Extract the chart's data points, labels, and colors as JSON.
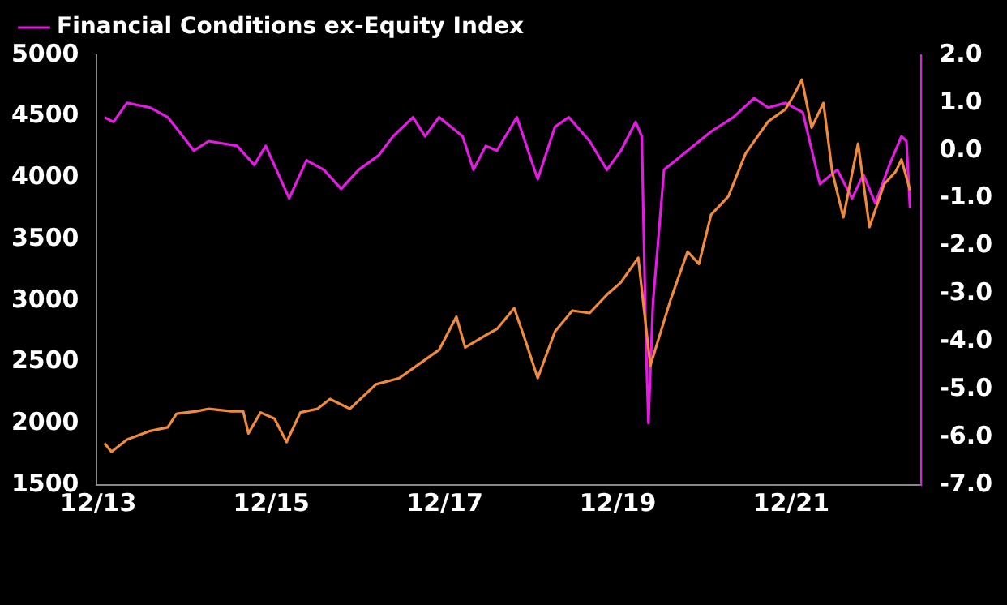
{
  "chart_data": {
    "type": "line",
    "legend": "top left",
    "grid": false,
    "marker": "none",
    "xlim": [
      "2013-11-25",
      "2023-06-03"
    ],
    "xticks": [
      {
        "value": "2013-12-01",
        "label": "12/13"
      },
      {
        "value": "2015-12-01",
        "label": "12/15"
      },
      {
        "value": "2017-12-01",
        "label": "12/17"
      },
      {
        "value": "2019-12-01",
        "label": "12/19"
      },
      {
        "value": "2021-12-01",
        "label": "12/21"
      }
    ],
    "ylim": [
      1500,
      5000
    ],
    "yticks": [
      1500,
      2000,
      2500,
      3000,
      3500,
      4000,
      4500,
      5000
    ],
    "y2lim": [
      -7,
      2
    ],
    "y2ticks": [
      {
        "value": -7,
        "label": "-7.0"
      },
      {
        "value": -6,
        "label": "-6.0"
      },
      {
        "value": -5,
        "label": "-5.0"
      },
      {
        "value": -4,
        "label": "-4.0"
      },
      {
        "value": -3,
        "label": "-3.0"
      },
      {
        "value": -2,
        "label": "-2.0"
      },
      {
        "value": -1,
        "label": "-1.0"
      },
      {
        "value": 0,
        "label": "0.0"
      },
      {
        "value": 1,
        "label": "1.0"
      },
      {
        "value": 2,
        "label": "2.0"
      }
    ],
    "series": [
      {
        "color": "#f08a3c",
        "axis": "y",
        "x": [
          "2013-12-27",
          "2014-01-26",
          "2014-04-01",
          "2014-07-08",
          "2014-09-20",
          "2014-10-27",
          "2015-01-19",
          "2015-03-11",
          "2015-06-14",
          "2015-08-04",
          "2015-08-26",
          "2015-10-16",
          "2015-12-14",
          "2016-02-03",
          "2016-04-01",
          "2016-06-13",
          "2016-08-04",
          "2016-10-27",
          "2017-02-14",
          "2017-05-23",
          "2017-08-04",
          "2017-11-07",
          "2018-01-19",
          "2018-02-25",
          "2018-05-23",
          "2018-07-09",
          "2018-09-20",
          "2018-11-07",
          "2018-12-28",
          "2019-03-11",
          "2019-05-23",
          "2019-08-04",
          "2019-10-16",
          "2019-12-14",
          "2020-02-25",
          "2020-04-16",
          "2020-07-09",
          "2020-09-20",
          "2020-11-07",
          "2020-12-28",
          "2021-03-11",
          "2021-05-23",
          "2021-08-26",
          "2021-11-07",
          "2021-12-14",
          "2022-01-15",
          "2022-02-25",
          "2022-04-16",
          "2022-05-23",
          "2022-07-09",
          "2022-09-09",
          "2022-10-27",
          "2022-12-28",
          "2023-02-14",
          "2023-03-11",
          "2023-04-16"
        ],
        "values": [
          1840,
          1770,
          1870,
          1940,
          1970,
          2080,
          2100,
          2120,
          2100,
          2100,
          1920,
          2090,
          2040,
          1850,
          2090,
          2120,
          2200,
          2120,
          2320,
          2370,
          2470,
          2600,
          2870,
          2620,
          2720,
          2770,
          2940,
          2670,
          2370,
          2750,
          2920,
          2900,
          3050,
          3150,
          3350,
          2470,
          3000,
          3400,
          3300,
          3700,
          3850,
          4200,
          4460,
          4560,
          4680,
          4800,
          4410,
          4610,
          4050,
          3680,
          4280,
          3600,
          3950,
          4050,
          4150,
          3900
        ]
      },
      {
        "name": "Financial Conditions ex-Equity Index",
        "color": "#e619e6",
        "axis": "y2",
        "x": [
          "2013-12-27",
          "2014-02-03",
          "2014-04-01",
          "2014-07-09",
          "2014-09-20",
          "2014-11-07",
          "2015-01-08",
          "2015-03-11",
          "2015-07-09",
          "2015-09-20",
          "2015-11-07",
          "2016-02-14",
          "2016-04-27",
          "2016-07-09",
          "2016-09-20",
          "2016-12-03",
          "2017-02-25",
          "2017-04-27",
          "2017-07-20",
          "2017-09-09",
          "2017-11-07",
          "2018-02-14",
          "2018-04-01",
          "2018-05-23",
          "2018-07-09",
          "2018-10-01",
          "2018-12-28",
          "2019-03-11",
          "2019-05-08",
          "2019-08-04",
          "2019-10-16",
          "2019-12-14",
          "2020-02-14",
          "2020-03-11",
          "2020-03-29",
          "2020-04-08",
          "2020-04-27",
          "2020-06-13",
          "2020-09-20",
          "2020-12-28",
          "2021-04-01",
          "2021-06-28",
          "2021-08-26",
          "2021-11-07",
          "2022-01-19",
          "2022-04-01",
          "2022-06-13",
          "2022-08-15",
          "2022-10-01",
          "2022-11-21",
          "2023-01-19",
          "2023-03-11",
          "2023-04-01",
          "2023-04-16"
        ],
        "values": [
          0.7,
          0.6,
          1.0,
          0.9,
          0.7,
          0.4,
          0.0,
          0.2,
          0.1,
          -0.3,
          0.1,
          -1.0,
          -0.2,
          -0.4,
          -0.8,
          -0.4,
          -0.1,
          0.3,
          0.7,
          0.3,
          0.7,
          0.3,
          -0.4,
          0.1,
          0.0,
          0.7,
          -0.6,
          0.5,
          0.7,
          0.2,
          -0.4,
          0.0,
          0.6,
          0.3,
          -4.1,
          -5.7,
          -3.2,
          -0.4,
          0.0,
          0.4,
          0.7,
          1.1,
          0.9,
          1.0,
          0.8,
          -0.7,
          -0.4,
          -1.0,
          -0.5,
          -1.1,
          -0.3,
          0.3,
          0.2,
          -1.2
        ]
      }
    ]
  }
}
